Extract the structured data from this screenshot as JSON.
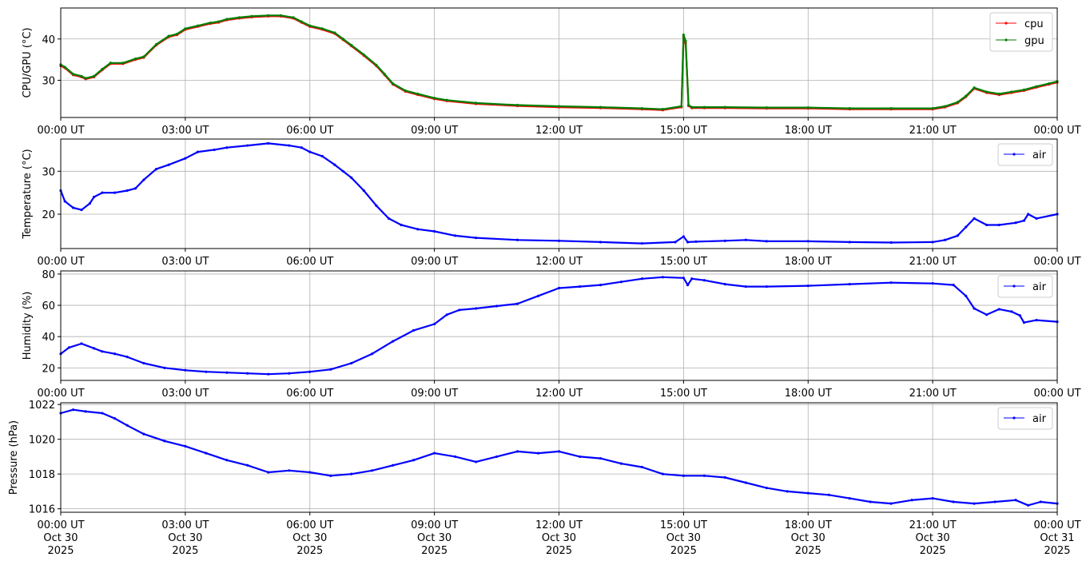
{
  "figure": {
    "x_ticks": [
      "00:00 UT",
      "03:00 UT",
      "06:00 UT",
      "09:00 UT",
      "12:00 UT",
      "15:00 UT",
      "18:00 UT",
      "21:00 UT",
      "00:00 UT"
    ],
    "x_tick_dates": [
      "Oct 30",
      "Oct 30",
      "Oct 30",
      "Oct 30",
      "Oct 30",
      "Oct 30",
      "Oct 30",
      "Oct 30",
      "Oct 31"
    ],
    "x_tick_years": [
      "2025",
      "2025",
      "2025",
      "2025",
      "2025",
      "2025",
      "2025",
      "2025",
      "2025"
    ]
  },
  "chart_data": [
    {
      "type": "line",
      "ylabel": "CPU/GPU (°C)",
      "xlim": [
        "2025-10-30 00:00",
        "2025-10-31 00:00"
      ],
      "ylim": [
        21,
        47.5
      ],
      "yticks": [
        30,
        40
      ],
      "grid": true,
      "legend": "top-right",
      "x_hours": [
        0,
        0.1,
        0.3,
        0.5,
        0.6,
        0.8,
        1.0,
        1.2,
        1.5,
        1.8,
        2.0,
        2.3,
        2.6,
        2.8,
        3.0,
        3.3,
        3.6,
        3.8,
        4.0,
        4.3,
        4.6,
        5.0,
        5.3,
        5.6,
        5.8,
        6.0,
        6.3,
        6.6,
        6.8,
        7.0,
        7.3,
        7.6,
        7.8,
        8.0,
        8.3,
        8.6,
        9.0,
        9.3,
        10.0,
        11.0,
        12.0,
        13.0,
        14.0,
        14.5,
        14.95,
        15.0,
        15.05,
        15.12,
        15.2,
        15.5,
        16.0,
        17.0,
        18.0,
        19.0,
        20.0,
        21.0,
        21.3,
        21.6,
        21.8,
        22.0,
        22.3,
        22.6,
        22.9,
        23.2,
        23.5,
        23.8,
        24.0
      ],
      "series": [
        {
          "name": "cpu",
          "color": "#ff0000",
          "values": [
            33.5,
            33.0,
            31.3,
            30.8,
            30.3,
            30.8,
            32.5,
            34.0,
            34.0,
            35.0,
            35.5,
            38.5,
            40.5,
            41.0,
            42.3,
            43.0,
            43.7,
            44.0,
            44.6,
            45.0,
            45.3,
            45.5,
            45.5,
            45.0,
            44.0,
            43.0,
            42.3,
            41.3,
            39.8,
            38.3,
            36.0,
            33.5,
            31.3,
            29.0,
            27.3,
            26.5,
            25.5,
            25.0,
            24.3,
            23.8,
            23.5,
            23.3,
            23.0,
            22.8,
            23.5,
            40.5,
            39.0,
            23.8,
            23.3,
            23.3,
            23.3,
            23.2,
            23.2,
            23.0,
            23.0,
            23.0,
            23.5,
            24.5,
            26.0,
            28.0,
            27.0,
            26.5,
            27.0,
            27.5,
            28.3,
            29.0,
            29.5
          ]
        },
        {
          "name": "gpu",
          "color": "#008000",
          "values": [
            33.8,
            33.2,
            31.5,
            31.0,
            30.5,
            31.0,
            32.7,
            34.2,
            34.2,
            35.2,
            35.7,
            38.7,
            40.7,
            41.2,
            42.5,
            43.2,
            43.9,
            44.2,
            44.8,
            45.2,
            45.5,
            45.7,
            45.7,
            45.2,
            44.2,
            43.2,
            42.5,
            41.5,
            40.0,
            38.5,
            36.2,
            33.7,
            31.5,
            29.2,
            27.5,
            26.7,
            25.7,
            25.2,
            24.5,
            24.0,
            23.7,
            23.5,
            23.2,
            23.0,
            23.7,
            41.0,
            39.5,
            24.0,
            23.5,
            23.5,
            23.5,
            23.4,
            23.4,
            23.2,
            23.2,
            23.2,
            23.7,
            24.7,
            26.2,
            28.2,
            27.2,
            26.7,
            27.2,
            27.7,
            28.5,
            29.2,
            29.7
          ]
        }
      ]
    },
    {
      "type": "line",
      "ylabel": "Temperature (°C)",
      "xlim": [
        "2025-10-30 00:00",
        "2025-10-31 00:00"
      ],
      "ylim": [
        12,
        37.5
      ],
      "yticks": [
        20,
        30
      ],
      "grid": true,
      "legend": "top-right",
      "x_hours": [
        0,
        0.1,
        0.3,
        0.5,
        0.7,
        0.8,
        1.0,
        1.3,
        1.6,
        1.8,
        2.0,
        2.3,
        2.6,
        3.0,
        3.3,
        3.7,
        4.0,
        4.5,
        5.0,
        5.5,
        5.8,
        6.0,
        6.3,
        6.6,
        6.8,
        7.0,
        7.3,
        7.6,
        7.9,
        8.2,
        8.6,
        9.0,
        9.5,
        10.0,
        11.0,
        12.0,
        13.0,
        14.0,
        14.8,
        15.0,
        15.1,
        15.3,
        16.0,
        16.5,
        17.0,
        18.0,
        19.0,
        20.0,
        21.0,
        21.3,
        21.6,
        21.8,
        22.0,
        22.3,
        22.6,
        23.0,
        23.2,
        23.3,
        23.5,
        24.0
      ],
      "series": [
        {
          "name": "air",
          "color": "#0000ff",
          "values": [
            25.5,
            23.0,
            21.5,
            21.0,
            22.5,
            24.0,
            25.0,
            25.0,
            25.5,
            26.0,
            28.0,
            30.5,
            31.5,
            33.0,
            34.5,
            35.0,
            35.5,
            36.0,
            36.5,
            36.0,
            35.5,
            34.5,
            33.5,
            31.5,
            30.0,
            28.5,
            25.5,
            22.0,
            19.0,
            17.5,
            16.5,
            16.0,
            15.0,
            14.5,
            14.0,
            13.8,
            13.5,
            13.2,
            13.5,
            14.8,
            13.5,
            13.6,
            13.8,
            14.0,
            13.7,
            13.7,
            13.5,
            13.4,
            13.5,
            14.0,
            15.0,
            17.0,
            19.0,
            17.5,
            17.5,
            18.0,
            18.5,
            20.0,
            19.0,
            20.0
          ]
        }
      ]
    },
    {
      "type": "line",
      "ylabel": "Humidity (%)",
      "xlim": [
        "2025-10-30 00:00",
        "2025-10-31 00:00"
      ],
      "ylim": [
        12,
        82
      ],
      "yticks": [
        20,
        40,
        60,
        80
      ],
      "grid": true,
      "legend": "top-right",
      "x_hours": [
        0,
        0.2,
        0.5,
        0.8,
        1.0,
        1.3,
        1.6,
        2.0,
        2.5,
        3.0,
        3.5,
        4.0,
        4.5,
        5.0,
        5.5,
        6.0,
        6.5,
        7.0,
        7.5,
        8.0,
        8.5,
        9.0,
        9.3,
        9.6,
        10.0,
        10.5,
        11.0,
        11.5,
        12.0,
        12.5,
        13.0,
        13.5,
        14.0,
        14.5,
        15.0,
        15.1,
        15.2,
        15.5,
        16.0,
        16.5,
        17.0,
        18.0,
        19.0,
        20.0,
        21.0,
        21.5,
        21.8,
        22.0,
        22.3,
        22.6,
        22.9,
        23.1,
        23.2,
        23.5,
        24.0
      ],
      "series": [
        {
          "name": "air",
          "color": "#0000ff",
          "values": [
            29.0,
            33.0,
            35.5,
            32.5,
            30.5,
            29.0,
            27.0,
            23.0,
            20.0,
            18.5,
            17.5,
            17.0,
            16.5,
            16.0,
            16.5,
            17.5,
            19.0,
            23.0,
            29.0,
            37.0,
            44.0,
            48.0,
            54.0,
            57.0,
            58.0,
            59.5,
            61.0,
            66.0,
            71.0,
            72.0,
            73.0,
            75.0,
            77.0,
            78.0,
            77.5,
            73.0,
            77.0,
            76.0,
            73.5,
            72.0,
            72.0,
            72.5,
            73.5,
            74.5,
            74.0,
            73.0,
            66.0,
            58.0,
            54.0,
            57.5,
            56.0,
            53.5,
            49.0,
            50.5,
            49.5
          ]
        }
      ]
    },
    {
      "type": "line",
      "ylabel": "Pressure (hPa)",
      "xlim": [
        "2025-10-30 00:00",
        "2025-10-31 00:00"
      ],
      "ylim": [
        1015.8,
        1022.1
      ],
      "yticks": [
        1016,
        1018,
        1020,
        1022
      ],
      "grid": true,
      "legend": "top-right",
      "x_hours": [
        0,
        0.3,
        0.6,
        1.0,
        1.3,
        1.6,
        2.0,
        2.5,
        3.0,
        3.5,
        4.0,
        4.5,
        5.0,
        5.5,
        6.0,
        6.5,
        7.0,
        7.5,
        8.0,
        8.5,
        9.0,
        9.5,
        10.0,
        10.5,
        11.0,
        11.5,
        12.0,
        12.5,
        13.0,
        13.5,
        14.0,
        14.5,
        15.0,
        15.5,
        16.0,
        16.5,
        17.0,
        17.5,
        18.0,
        18.5,
        19.0,
        19.5,
        20.0,
        20.5,
        21.0,
        21.5,
        22.0,
        22.5,
        23.0,
        23.3,
        23.6,
        24.0
      ],
      "series": [
        {
          "name": "air",
          "color": "#0000ff",
          "values": [
            1021.5,
            1021.7,
            1021.6,
            1021.5,
            1021.2,
            1020.8,
            1020.3,
            1019.9,
            1019.6,
            1019.2,
            1018.8,
            1018.5,
            1018.1,
            1018.2,
            1018.1,
            1017.9,
            1018.0,
            1018.2,
            1018.5,
            1018.8,
            1019.2,
            1019.0,
            1018.7,
            1019.0,
            1019.3,
            1019.2,
            1019.3,
            1019.0,
            1018.9,
            1018.6,
            1018.4,
            1018.0,
            1017.9,
            1017.9,
            1017.8,
            1017.5,
            1017.2,
            1017.0,
            1016.9,
            1016.8,
            1016.6,
            1016.4,
            1016.3,
            1016.5,
            1016.6,
            1016.4,
            1016.3,
            1016.4,
            1016.5,
            1016.2,
            1016.4,
            1016.3
          ]
        }
      ]
    }
  ]
}
